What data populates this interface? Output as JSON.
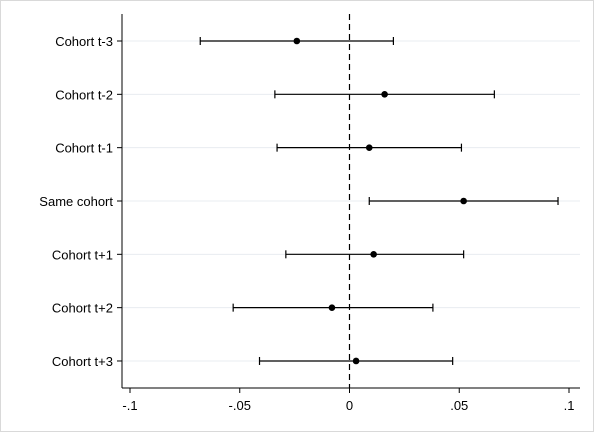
{
  "chart_data": {
    "type": "scatter",
    "orientation": "horizontal",
    "title": "",
    "xlabel": "",
    "ylabel": "",
    "xlim": [
      -0.1,
      0.1
    ],
    "x_ticks": [
      -0.1,
      -0.05,
      0,
      0.05,
      0.1
    ],
    "x_tick_labels": [
      "-.1",
      "-.05",
      "0",
      ".05",
      ".1"
    ],
    "grid": true,
    "reference_line": {
      "x": 0,
      "style": "dashed"
    },
    "categories": [
      "Cohort t-3",
      "Cohort t-2",
      "Cohort t-1",
      "Same cohort",
      "Cohort t+1",
      "Cohort t+2",
      "Cohort t+3"
    ],
    "estimates": [
      -0.024,
      0.016,
      0.009,
      0.052,
      0.011,
      -0.008,
      0.003
    ],
    "ci_low": [
      -0.068,
      -0.034,
      -0.033,
      0.009,
      -0.029,
      -0.053,
      -0.041
    ],
    "ci_high": [
      0.02,
      0.066,
      0.051,
      0.095,
      0.052,
      0.038,
      0.047
    ]
  },
  "colors": {
    "grid": "#e8ecf0",
    "marks": "#000000",
    "frame": "#d9d9d9"
  }
}
